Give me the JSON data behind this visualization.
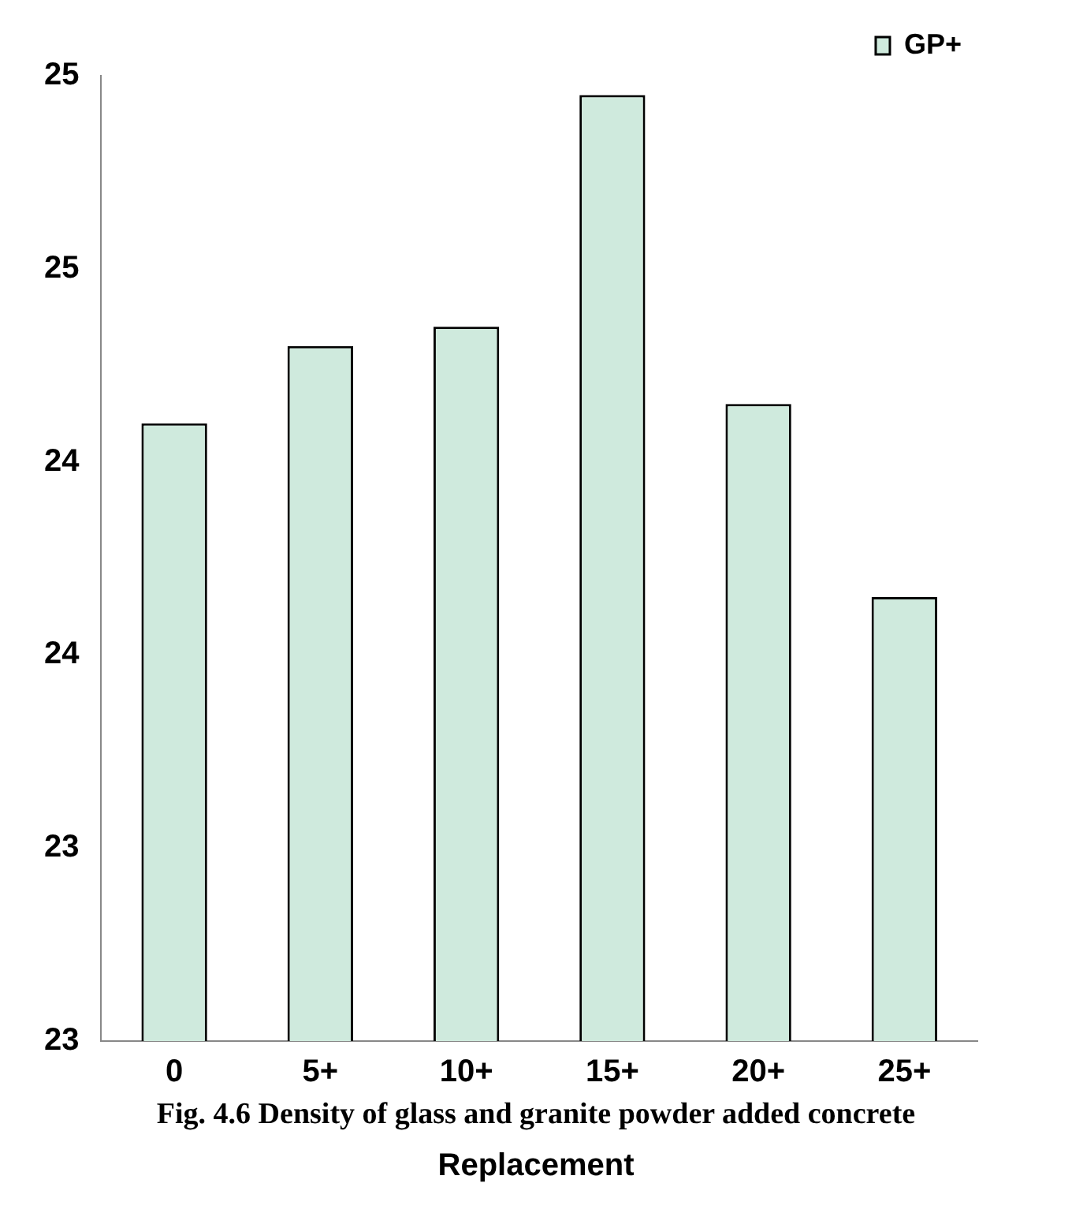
{
  "chart_data": {
    "type": "bar",
    "categories": [
      "0",
      "5+",
      "10+",
      "15+",
      "20+",
      "25+"
    ],
    "series": [
      {
        "name": "GP+",
        "color": "#cfeadd",
        "values": [
          24.28,
          24.44,
          24.48,
          24.96,
          24.32,
          23.92
        ]
      }
    ],
    "ylim": [
      23.0,
      25.0
    ],
    "yticks": [
      {
        "value": 23.0,
        "label": "23"
      },
      {
        "value": 23.4,
        "label": "23"
      },
      {
        "value": 23.8,
        "label": "24"
      },
      {
        "value": 24.2,
        "label": "24"
      },
      {
        "value": 24.6,
        "label": "25"
      },
      {
        "value": 25.0,
        "label": "25"
      }
    ],
    "xlabel": "Replacement",
    "annotations": [
      "Fig. 4.6 Density of glass and granite powder added concrete"
    ],
    "grid": false,
    "legend": "top right"
  }
}
